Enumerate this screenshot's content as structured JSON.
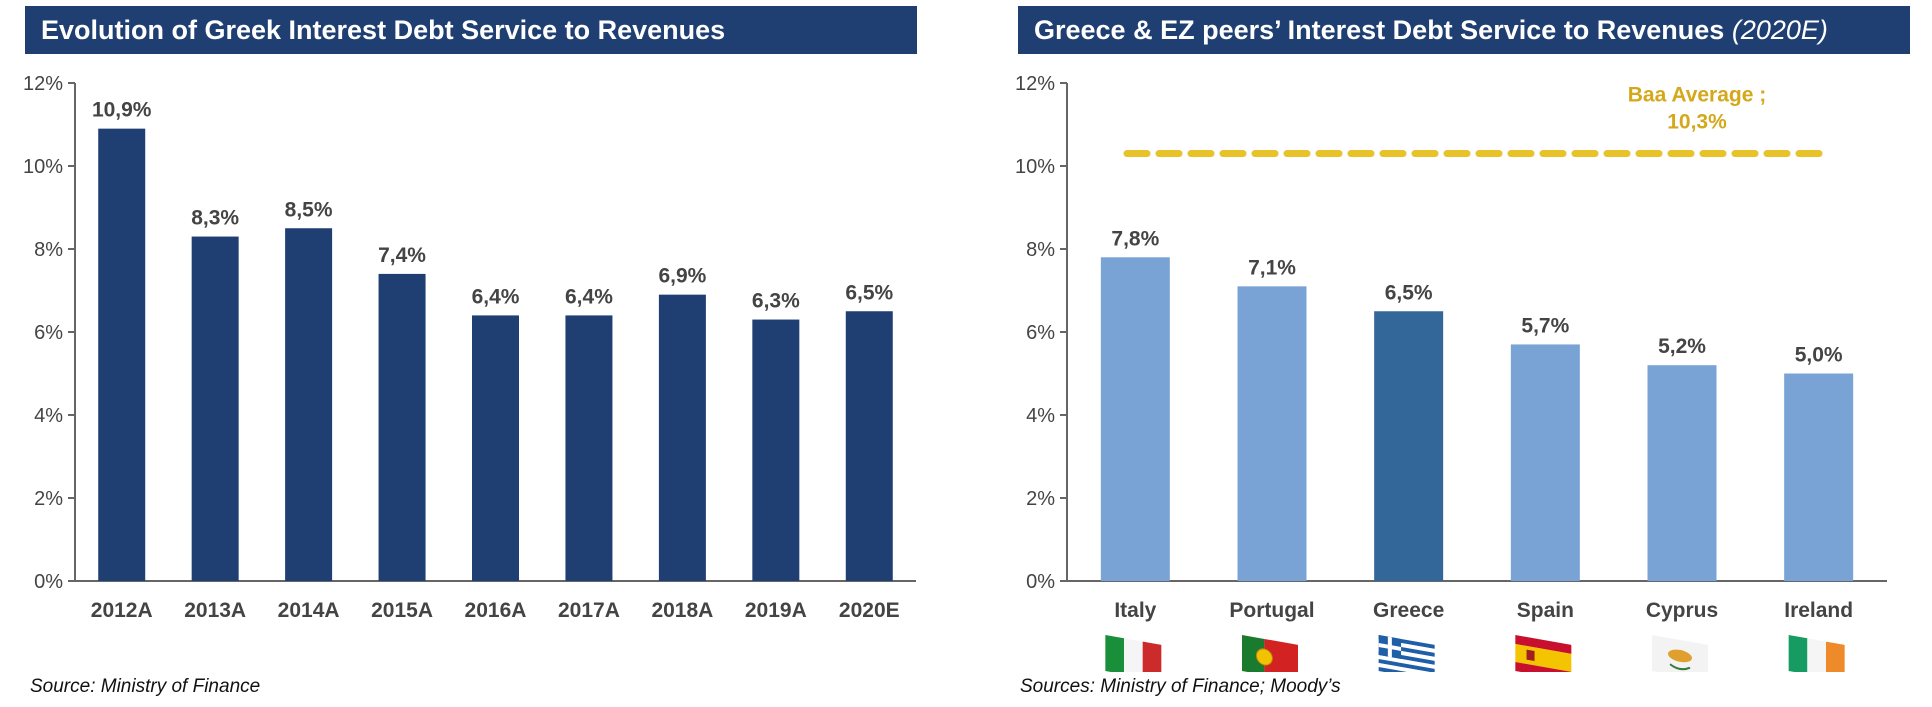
{
  "left": {
    "title": "Evolution of Greek Interest Debt Service to Revenues",
    "source": "Source: Ministry of Finance"
  },
  "right": {
    "title": "Greece & EZ peers’ Interest Debt Service to Revenues",
    "title_suffix": "(2020E)",
    "source": "Sources: Ministry of Finance; Moody’s"
  },
  "chart_data": [
    {
      "type": "bar",
      "title": "Evolution of Greek Interest Debt Service to Revenues",
      "categories": [
        "2012A",
        "2013A",
        "2014A",
        "2015A",
        "2016A",
        "2017A",
        "2018A",
        "2019A",
        "2020E"
      ],
      "values": [
        10.9,
        8.3,
        8.5,
        7.4,
        6.4,
        6.4,
        6.9,
        6.3,
        6.5
      ],
      "labels": [
        "10,9%",
        "8,3%",
        "8,5%",
        "7,4%",
        "6,4%",
        "6,4%",
        "6,9%",
        "6,3%",
        "6,5%"
      ],
      "ylim": [
        0,
        12
      ],
      "yticks": [
        0,
        2,
        4,
        6,
        8,
        10,
        12
      ],
      "ytick_labels": [
        "0%",
        "2%",
        "4%",
        "6%",
        "8%",
        "10%",
        "12%"
      ],
      "grid": false,
      "bar_color": "#1f3f73"
    },
    {
      "type": "bar",
      "title": "Greece & EZ peers’ Interest Debt Service to Revenues (2020E)",
      "categories": [
        "Italy",
        "Portugal",
        "Greece",
        "Spain",
        "Cyprus",
        "Ireland"
      ],
      "values": [
        7.8,
        7.1,
        6.5,
        5.7,
        5.2,
        5.0
      ],
      "labels": [
        "7,8%",
        "7,1%",
        "6,5%",
        "5,7%",
        "5,2%",
        "5,0%"
      ],
      "ylim": [
        0,
        12
      ],
      "yticks": [
        0,
        2,
        4,
        6,
        8,
        10,
        12
      ],
      "ytick_labels": [
        "0%",
        "2%",
        "4%",
        "6%",
        "8%",
        "10%",
        "12%"
      ],
      "grid": false,
      "bar_color": "#78a3d4",
      "highlight_category": "Greece",
      "highlight_color": "#336699",
      "reference_line": {
        "value": 10.3,
        "label_line1": "Baa Average ;",
        "label_line2": "10,3%",
        "color": "#e8c229",
        "style": "dashed"
      },
      "flag_icons": [
        "italy-flag-icon",
        "portugal-flag-icon",
        "greece-flag-icon",
        "spain-flag-icon",
        "cyprus-flag-icon",
        "ireland-flag-icon"
      ]
    }
  ]
}
